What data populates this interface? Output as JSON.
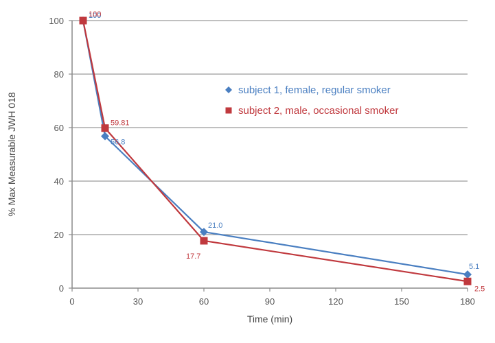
{
  "chart_data": {
    "type": "line",
    "title": "",
    "xlabel": "Time (min)",
    "ylabel": "% Max Measurable JWH 018",
    "xlim": [
      0,
      180
    ],
    "ylim": [
      0,
      100
    ],
    "xticks": [
      0,
      30,
      60,
      90,
      120,
      150,
      180
    ],
    "yticks": [
      0,
      20,
      40,
      60,
      80,
      100
    ],
    "grid": "horizontal",
    "legend_position": "right",
    "series": [
      {
        "name": "subject 1, female, regular smoker",
        "color": "#4a7fc1",
        "marker": "diamond",
        "points": [
          {
            "x": 5,
            "y": 100,
            "label": "100"
          },
          {
            "x": 15,
            "y": 56.8,
            "label": "56.8"
          },
          {
            "x": 60,
            "y": 21.0,
            "label": "21.0"
          },
          {
            "x": 180,
            "y": 5.1,
            "label": "5.1"
          }
        ]
      },
      {
        "name": "subject 2, male, occasional smoker",
        "color": "#c0393e",
        "marker": "square",
        "points": [
          {
            "x": 5,
            "y": 100,
            "label": "100"
          },
          {
            "x": 15,
            "y": 59.81,
            "label": "59.81"
          },
          {
            "x": 60,
            "y": 17.7,
            "label": "17.7"
          },
          {
            "x": 180,
            "y": 2.5,
            "label": "2.5"
          }
        ]
      }
    ]
  }
}
